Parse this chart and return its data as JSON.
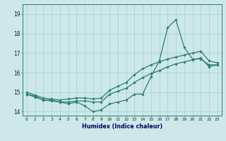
{
  "xlabel": "Humidex (Indice chaleur)",
  "x": [
    0,
    1,
    2,
    3,
    4,
    5,
    6,
    7,
    8,
    9,
    10,
    11,
    12,
    13,
    14,
    15,
    16,
    17,
    18,
    19,
    20,
    21,
    22,
    23
  ],
  "line1": [
    14.9,
    14.8,
    14.6,
    14.6,
    14.5,
    14.4,
    14.5,
    14.3,
    14.0,
    14.1,
    14.4,
    14.5,
    14.6,
    14.9,
    14.9,
    15.8,
    16.6,
    18.3,
    18.7,
    17.3,
    16.7,
    16.7,
    16.4,
    16.4
  ],
  "line2": [
    15.0,
    14.85,
    14.7,
    14.65,
    14.6,
    14.65,
    14.7,
    14.7,
    14.65,
    14.7,
    15.1,
    15.3,
    15.5,
    15.9,
    16.2,
    16.4,
    16.55,
    16.7,
    16.8,
    16.9,
    17.0,
    17.1,
    16.6,
    16.5
  ],
  "line3": [
    14.9,
    14.75,
    14.6,
    14.55,
    14.5,
    14.5,
    14.55,
    14.55,
    14.5,
    14.5,
    14.9,
    15.05,
    15.2,
    15.5,
    15.75,
    15.95,
    16.1,
    16.3,
    16.45,
    16.55,
    16.65,
    16.75,
    16.3,
    16.4
  ],
  "line_color": "#2d7d6e",
  "bg_color": "#cce8e8",
  "grid_color": "#a8d0d0",
  "ylim": [
    13.8,
    19.5
  ],
  "yticks": [
    14,
    15,
    16,
    17,
    18,
    19
  ],
  "xticks": [
    0,
    1,
    2,
    3,
    4,
    5,
    6,
    7,
    8,
    9,
    10,
    11,
    12,
    13,
    14,
    15,
    16,
    17,
    18,
    19,
    20,
    21,
    22,
    23
  ],
  "marker": "D",
  "markersize": 1.8,
  "linewidth": 0.9
}
